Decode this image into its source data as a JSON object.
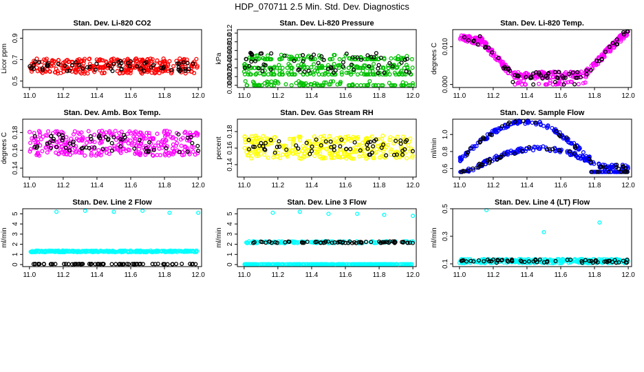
{
  "page_title": "HDP_070711  2.5 Min. Std. Dev. Diagnostics",
  "xaxis": {
    "ticks": [
      "11.0",
      "11.2",
      "11.4",
      "11.6",
      "11.8",
      "12.0"
    ],
    "range": [
      10.96,
      12.02
    ]
  },
  "colors": {
    "primary_series": "various",
    "overlay": "#000000"
  },
  "chart_data": [
    {
      "type": "scatter",
      "title": "Stan. Dev. Li-820 CO2",
      "ylabel": "Licor ppm",
      "yticks": [
        "0.5",
        "0.7",
        "0.9"
      ],
      "ylim": [
        0.44,
        0.98
      ],
      "color": "#ff0000",
      "series": [
        {
          "name": "main",
          "pattern": "band",
          "center": 0.64,
          "spread": 0.07,
          "n": 320
        },
        {
          "name": "black",
          "pattern": "band",
          "center": 0.64,
          "spread": 0.05,
          "n": 60
        }
      ]
    },
    {
      "type": "scatter",
      "title": "Stan. Dev. Li-820 Pressure",
      "ylabel": "kPa",
      "yticks": [
        "0.000",
        "0.002",
        "0.004",
        "0.006",
        "0.008",
        "0.010",
        "0.012"
      ],
      "ylim": [
        -0.0005,
        0.0128
      ],
      "color": "#00c000",
      "series": [
        {
          "name": "main",
          "pattern": "quantized",
          "levels": [
            0.0,
            0.0025,
            0.004,
            0.006
          ],
          "n": 420
        },
        {
          "name": "black",
          "pattern": "band",
          "center": 0.005,
          "spread": 0.0025,
          "n": 60
        }
      ]
    },
    {
      "type": "scatter",
      "title": "Stan. Dev. Li-820 Temp.",
      "ylabel": "degrees C",
      "yticks": [
        "0.000",
        "0.010"
      ],
      "ylim": [
        -0.0008,
        0.0145
      ],
      "color": "#ff00ff",
      "series": [
        {
          "name": "main",
          "pattern": "trough",
          "n": 380
        },
        {
          "name": "black",
          "pattern": "trough",
          "n": 70
        }
      ]
    },
    {
      "type": "scatter",
      "title": "Stan. Dev. Amb. Box Temp.",
      "ylabel": "degrees C",
      "yticks": [
        "0.14",
        "0.16",
        "0.18"
      ],
      "ylim": [
        0.13,
        0.195
      ],
      "color": "#ff00ff",
      "series": [
        {
          "name": "main",
          "pattern": "band",
          "center": 0.168,
          "spread": 0.014,
          "n": 320
        },
        {
          "name": "black",
          "pattern": "band",
          "center": 0.168,
          "spread": 0.01,
          "n": 60
        }
      ]
    },
    {
      "type": "scatter",
      "title": "Stan. Dev. Gas Stream RH",
      "ylabel": "percent",
      "yticks": [
        "0.14",
        "0.16",
        "0.18"
      ],
      "ylim": [
        0.125,
        0.195
      ],
      "color": "#ffff00",
      "series": [
        {
          "name": "main",
          "pattern": "band",
          "center": 0.161,
          "spread": 0.014,
          "n": 320
        },
        {
          "name": "black",
          "pattern": "band",
          "center": 0.161,
          "spread": 0.01,
          "n": 60
        }
      ]
    },
    {
      "type": "scatter",
      "title": "Stan. Dev. Sample Flow",
      "ylabel": "ml/min",
      "yticks": [
        "0.6",
        "0.8",
        "1.0"
      ],
      "ylim": [
        0.5,
        1.18
      ],
      "color": "#0000ff",
      "series": [
        {
          "name": "main",
          "pattern": "twohump",
          "n": 380
        },
        {
          "name": "black",
          "pattern": "twohump",
          "n": 70
        }
      ]
    },
    {
      "type": "scatter",
      "title": "Stan. Dev. Line 2 Flow",
      "ylabel": "ml/min",
      "yticks": [
        "0",
        "1",
        "2",
        "3",
        "4",
        "5"
      ],
      "ylim": [
        -0.2,
        5.5
      ],
      "color": "#00ffff",
      "series": [
        {
          "name": "main",
          "pattern": "flat",
          "center": 1.3,
          "spread": 0.08,
          "n": 300
        },
        {
          "name": "black",
          "pattern": "flat",
          "center": 0.05,
          "spread": 0.02,
          "n": 70
        }
      ],
      "outliers": [
        [
          11.16,
          5.2
        ],
        [
          11.33,
          5.3
        ],
        [
          11.5,
          5.2
        ],
        [
          11.67,
          5.3
        ],
        [
          11.83,
          5.1
        ],
        [
          12.0,
          5.1
        ]
      ]
    },
    {
      "type": "scatter",
      "title": "Stan. Dev. Line 3 Flow",
      "ylabel": "ml/min",
      "yticks": [
        "0",
        "1",
        "2",
        "3",
        "4",
        "5"
      ],
      "ylim": [
        -0.2,
        5.5
      ],
      "color": "#00ffff",
      "series": [
        {
          "name": "main",
          "pattern": "flat",
          "center": 2.2,
          "spread": 0.1,
          "n": 120
        },
        {
          "name": "main_low",
          "pattern": "flat",
          "center": 0.03,
          "spread": 0.01,
          "n": 300
        },
        {
          "name": "black",
          "pattern": "flat",
          "center": 2.2,
          "spread": 0.08,
          "n": 70
        }
      ],
      "outliers": [
        [
          11.17,
          5.1
        ],
        [
          11.33,
          5.2
        ],
        [
          11.5,
          5.0
        ],
        [
          11.67,
          5.0
        ],
        [
          11.83,
          4.9
        ],
        [
          12.0,
          4.8
        ]
      ]
    },
    {
      "type": "scatter",
      "title": "Stan. Dev. Line 4 (LT) Flow",
      "ylabel": "ml/min",
      "yticks": [
        "0.1",
        "0.3",
        "0.5"
      ],
      "ylim": [
        0.08,
        0.5
      ],
      "color": "#00ffff",
      "series": [
        {
          "name": "main",
          "pattern": "flat",
          "center": 0.12,
          "spread": 0.015,
          "n": 320
        },
        {
          "name": "black",
          "pattern": "flat",
          "center": 0.12,
          "spread": 0.012,
          "n": 60
        }
      ],
      "outliers": [
        [
          11.16,
          0.49
        ],
        [
          11.5,
          0.33
        ],
        [
          11.83,
          0.4
        ]
      ]
    }
  ]
}
